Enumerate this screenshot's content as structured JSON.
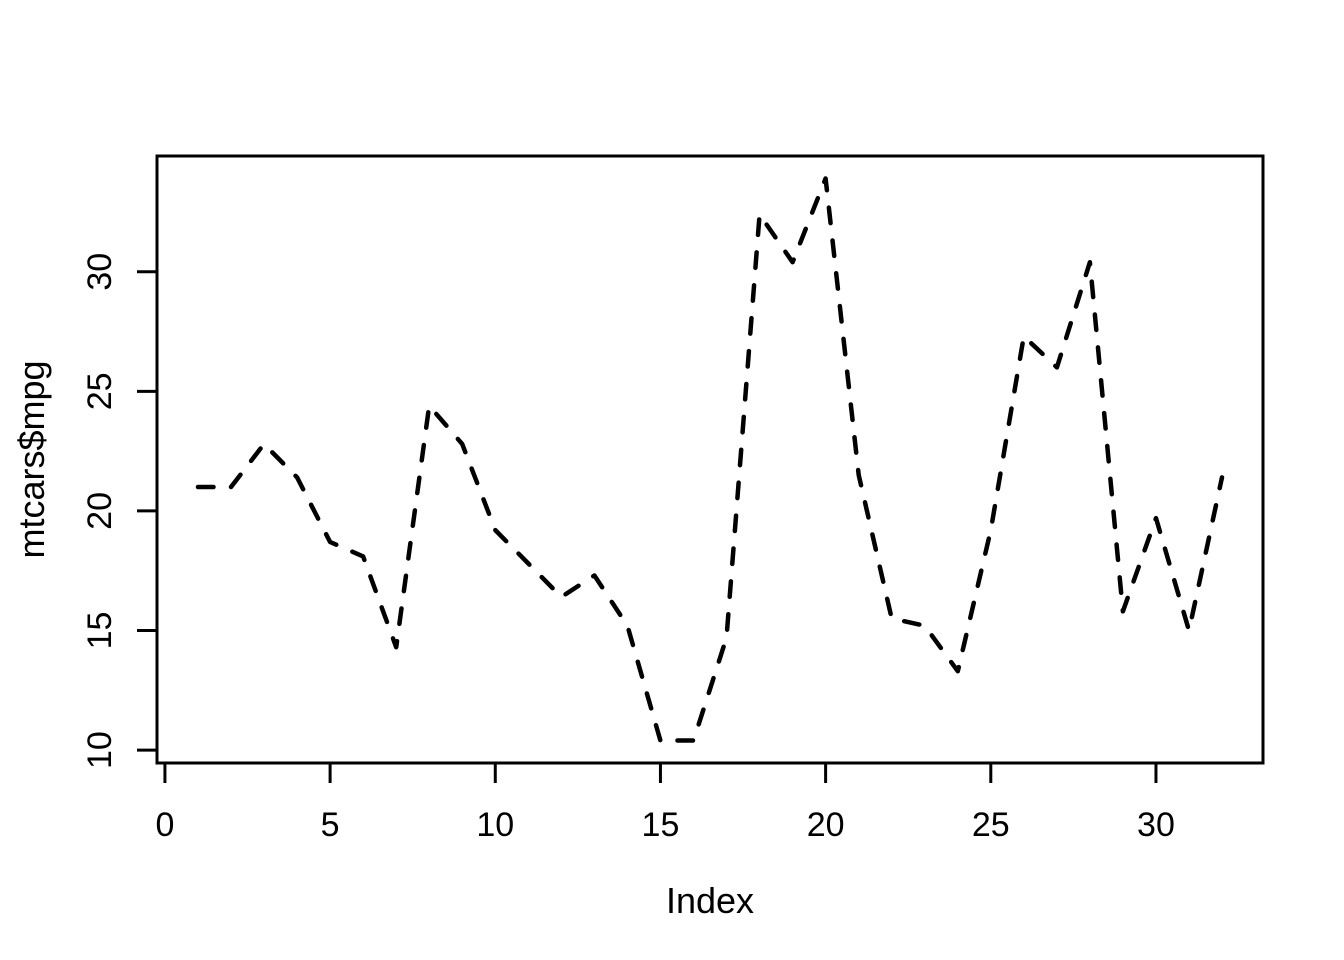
{
  "figure": {
    "background": "#ffffff",
    "foreground": "#000000"
  },
  "chart_data": {
    "type": "line",
    "title": "",
    "xlabel": "Index",
    "ylabel": "mtcars$mpg",
    "series": [
      {
        "name": "mtcars$mpg",
        "x": [
          1,
          2,
          3,
          4,
          5,
          6,
          7,
          8,
          9,
          10,
          11,
          12,
          13,
          14,
          15,
          16,
          17,
          18,
          19,
          20,
          21,
          22,
          23,
          24,
          25,
          26,
          27,
          28,
          29,
          30,
          31,
          32
        ],
        "y": [
          21.0,
          21.0,
          22.8,
          21.4,
          18.7,
          18.1,
          14.3,
          24.4,
          22.8,
          19.2,
          17.8,
          16.4,
          17.3,
          15.2,
          10.4,
          10.4,
          14.7,
          32.4,
          30.4,
          33.9,
          21.5,
          15.5,
          15.2,
          13.3,
          19.2,
          27.3,
          26.0,
          30.4,
          15.8,
          19.7,
          15.0,
          21.4
        ]
      }
    ],
    "xticks": [
      0,
      5,
      10,
      15,
      20,
      25,
      30
    ],
    "yticks": [
      10,
      15,
      20,
      25,
      30
    ],
    "xlim": [
      -0.24,
      33.24
    ],
    "ylim": [
      9.46,
      34.84
    ],
    "grid": false,
    "legend": "none",
    "line": {
      "style": "dashed",
      "color": "#000000"
    }
  }
}
